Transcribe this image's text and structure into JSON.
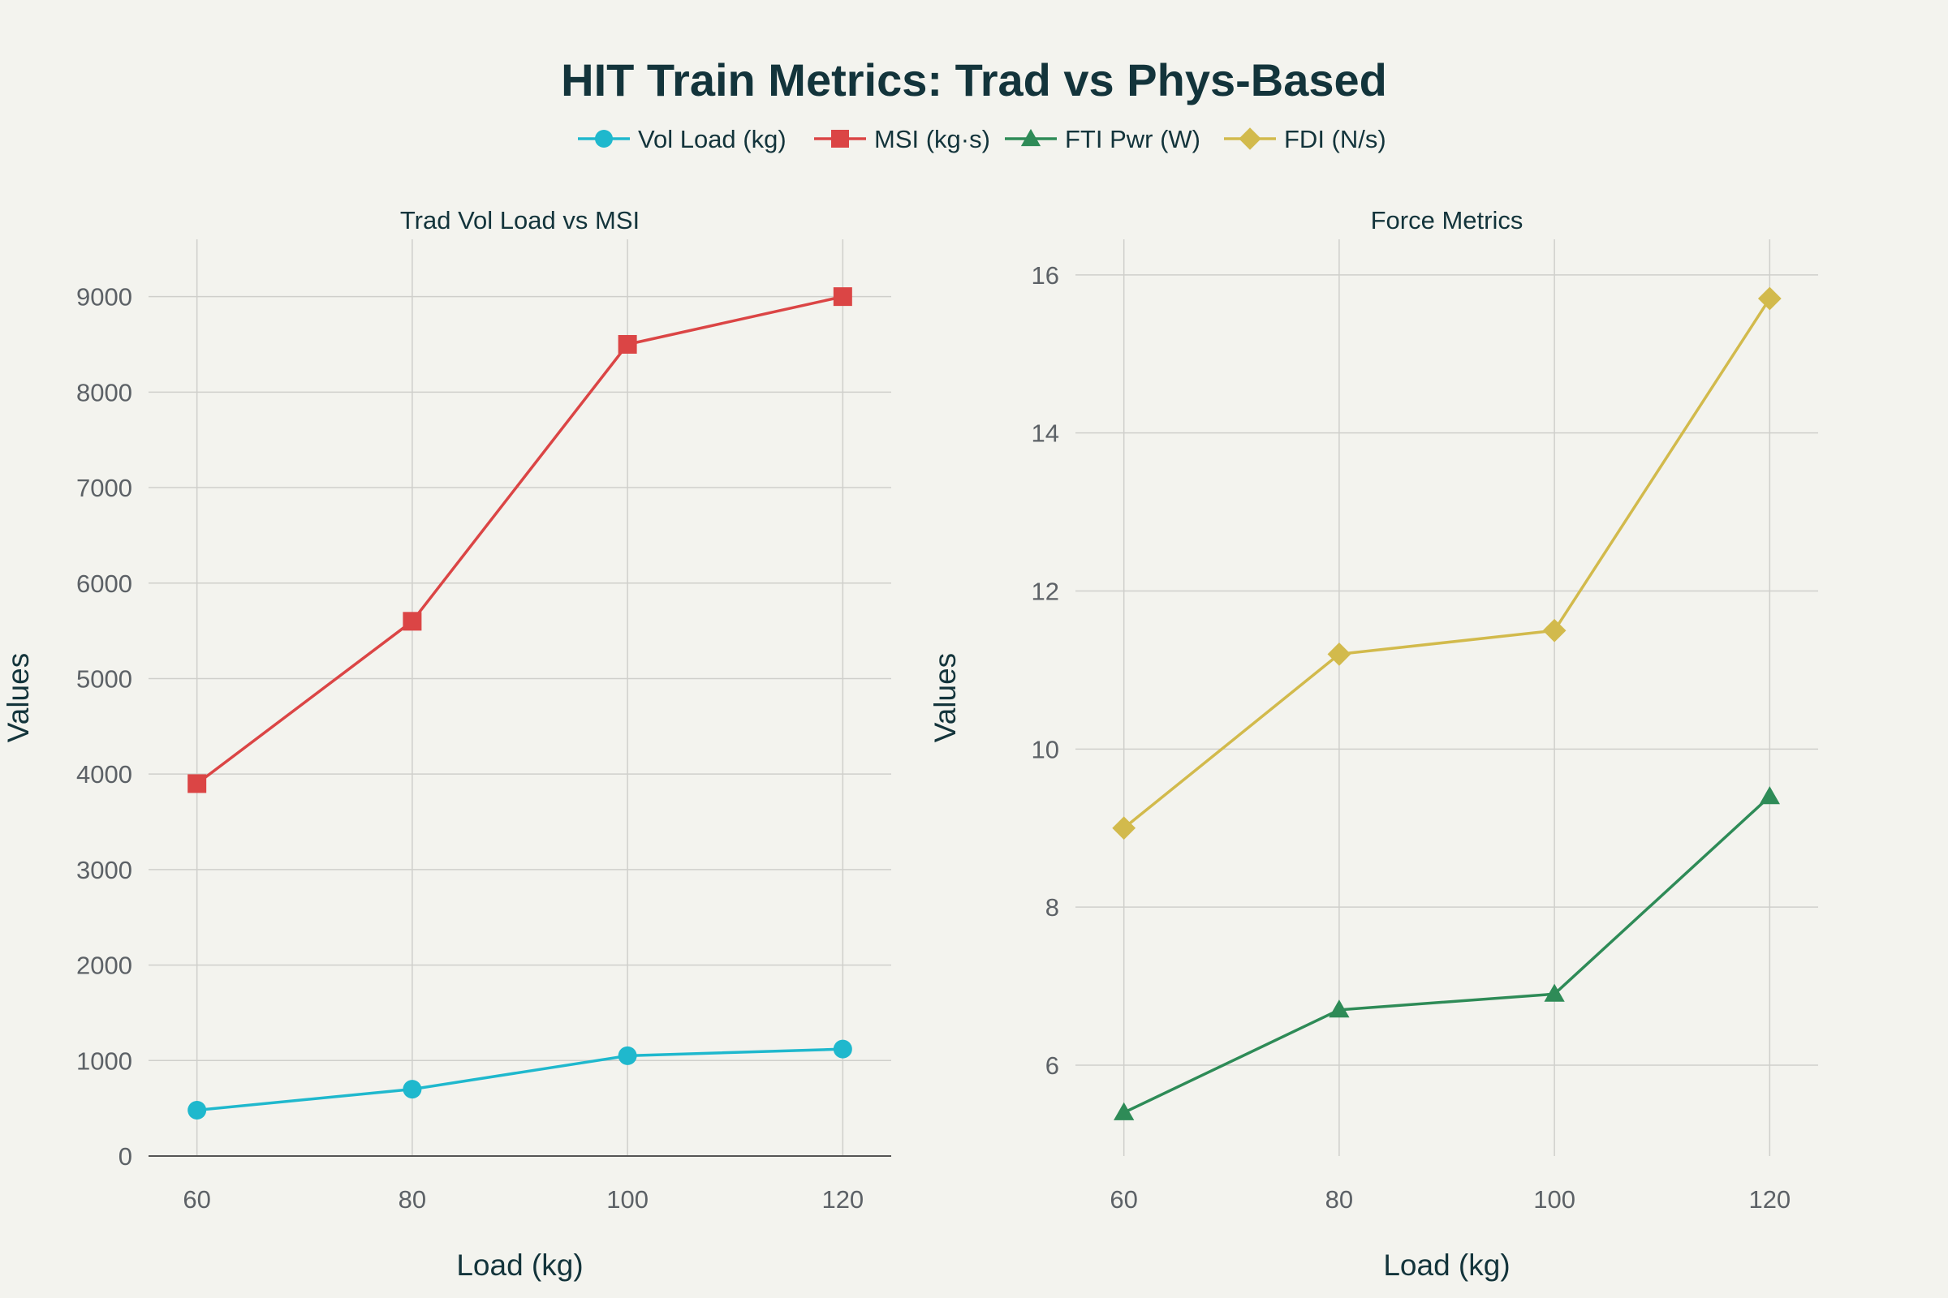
{
  "chart_data": {
    "type": "line",
    "title": "HIT Train Metrics: Trad vs Phys-Based",
    "legend": {
      "position": "top-center",
      "entries": [
        {
          "name": "Vol Load (kg)",
          "color": "#1fb8cd",
          "marker": "circle"
        },
        {
          "name": "MSI (kg·s)",
          "color": "#db4545",
          "marker": "square"
        },
        {
          "name": "FTI Pwr (W)",
          "color": "#2e8b57",
          "marker": "triangle"
        },
        {
          "name": "FDI (N/s)",
          "color": "#d2ba4c",
          "marker": "diamond"
        }
      ]
    },
    "grid": true,
    "subplots": [
      {
        "title": "Trad Vol Load vs MSI",
        "xlabel": "Load (kg)",
        "ylabel": "Values",
        "x": [
          60,
          80,
          100,
          120
        ],
        "xlim": [
          55.5,
          124.5
        ],
        "xticks": [
          60,
          80,
          100,
          120
        ],
        "ylim": [
          0,
          9600
        ],
        "yticks": [
          0,
          1000,
          2000,
          3000,
          4000,
          5000,
          6000,
          7000,
          8000,
          9000
        ],
        "series": [
          {
            "name": "Vol Load (kg)",
            "color": "#1fb8cd",
            "marker": "circle",
            "values": [
              480,
              700,
              1050,
              1120
            ]
          },
          {
            "name": "MSI (kg·s)",
            "color": "#db4545",
            "marker": "square",
            "values": [
              3900,
              5600,
              8500,
              9000
            ]
          }
        ]
      },
      {
        "title": "Force Metrics",
        "xlabel": "Load (kg)",
        "ylabel": "Values",
        "x": [
          60,
          80,
          100,
          120
        ],
        "xlim": [
          55.5,
          124.5
        ],
        "xticks": [
          60,
          80,
          100,
          120
        ],
        "ylim": [
          4.85,
          16.45
        ],
        "yticks": [
          6,
          8,
          10,
          12,
          14,
          16
        ],
        "series": [
          {
            "name": "FTI Pwr (W)",
            "color": "#2e8b57",
            "marker": "triangle",
            "values": [
              5.4,
              6.7,
              6.9,
              9.4
            ]
          },
          {
            "name": "FDI (N/s)",
            "color": "#d2ba4c",
            "marker": "diamond",
            "values": [
              9.0,
              11.2,
              11.5,
              15.7
            ]
          }
        ]
      }
    ]
  }
}
